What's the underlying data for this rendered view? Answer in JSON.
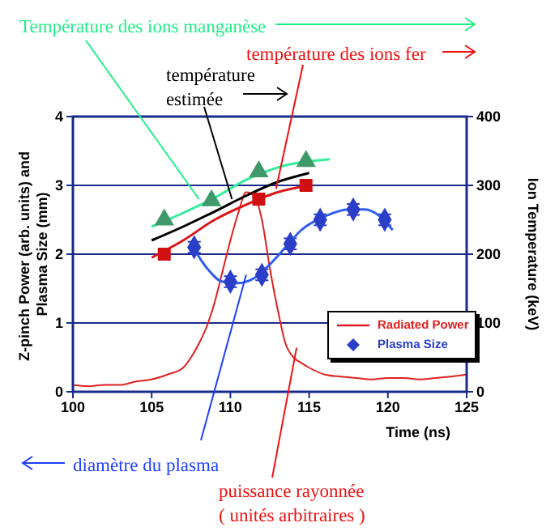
{
  "chart_data": {
    "type": "line",
    "xlabel": "Time (ns)",
    "ylabel": "Z-pinch Power (arb. units) and Plasma Size (mm)",
    "y2label": "Ion Temperature (keV)",
    "xlim": [
      100,
      125
    ],
    "xticks": [
      100,
      105,
      110,
      115,
      120,
      125
    ],
    "ylim": [
      0,
      4
    ],
    "yticks": [
      0,
      1,
      2,
      3,
      4
    ],
    "y2lim": [
      0,
      400
    ],
    "y2ticks": [
      0,
      100,
      200,
      300,
      400
    ],
    "grid": "y",
    "legend": "bottom right",
    "series": [
      {
        "name": "Radiated Power",
        "color": "#e02020",
        "x": [
          100,
          101,
          102,
          103,
          104,
          105,
          106,
          107,
          107.5,
          108,
          108.5,
          109,
          109.5,
          110,
          110.5,
          111,
          111.5,
          112,
          112.5,
          113,
          113.5,
          114,
          114.5,
          115,
          116,
          117,
          118,
          119,
          120,
          121,
          122,
          123,
          124,
          125
        ],
        "values": [
          0.1,
          0.08,
          0.1,
          0.1,
          0.15,
          0.18,
          0.25,
          0.35,
          0.5,
          0.7,
          0.95,
          1.3,
          1.75,
          2.2,
          2.6,
          2.9,
          2.85,
          2.5,
          1.8,
          1.2,
          0.7,
          0.5,
          0.42,
          0.35,
          0.25,
          0.22,
          0.2,
          0.18,
          0.2,
          0.2,
          0.18,
          0.2,
          0.22,
          0.25
        ]
      },
      {
        "name": "Plasma Size",
        "type": "scatter",
        "marker": "diamond",
        "color": "#2a3ec8",
        "x": [
          107.7,
          110,
          112,
          113.8,
          115.7,
          117.8,
          119.8
        ],
        "values": [
          2.1,
          1.6,
          1.7,
          2.15,
          2.5,
          2.65,
          2.5
        ],
        "errors": [
          0.08,
          0.08,
          0.08,
          0.08,
          0.08,
          0.08,
          0.08
        ]
      },
      {
        "color": "#2f5cf0",
        "x": [
          107.5,
          108.5,
          109.5,
          110.5,
          111.5,
          112.5,
          113.5,
          114.5,
          116,
          117.5,
          118.5,
          119.5,
          120.3
        ],
        "values": [
          2.15,
          1.8,
          1.6,
          1.58,
          1.65,
          1.85,
          2.1,
          2.35,
          2.55,
          2.65,
          2.65,
          2.55,
          2.35
        ]
      },
      {
        "type": "scatter",
        "marker": "square",
        "axis": "y2",
        "color": "#d01010",
        "x": [
          105.8,
          111.8,
          114.8
        ],
        "values": [
          200,
          280,
          300
        ]
      },
      {
        "axis": "y2",
        "color": "#d81818",
        "x": [
          105,
          107,
          109,
          111,
          113,
          115
        ],
        "values": [
          195,
          220,
          250,
          272,
          290,
          300
        ]
      },
      {
        "type": "scatter",
        "marker": "triangle",
        "axis": "y2",
        "color": "#3e9a6a",
        "x": [
          105.8,
          108.8,
          111.8,
          114.8
        ],
        "values": [
          250,
          278,
          320,
          335
        ]
      },
      {
        "axis": "y2",
        "color": "#33ee99",
        "x": [
          105,
          107,
          109,
          111,
          113,
          116.3
        ],
        "values": [
          240,
          260,
          282,
          308,
          326,
          338
        ]
      },
      {
        "axis": "y2",
        "color": "#000000",
        "x": [
          105,
          107,
          109,
          111,
          113,
          115
        ],
        "values": [
          220,
          240,
          262,
          285,
          305,
          318
        ]
      }
    ],
    "annotations": [
      {
        "text": "Température des ions manganèse",
        "x": 108,
        "y": 2.8
      },
      {
        "text": "température des ions fer",
        "x": 112.9,
        "y": 2.95
      },
      {
        "text": "température\nestimée",
        "x": 110.1,
        "y": 2.8
      },
      {
        "text": "diamètre du plasma",
        "x": 111,
        "y": 1.7
      },
      {
        "text": "puissance rayonnée\n( unités arbitraires )",
        "x": 114.2,
        "y": 0.64
      }
    ]
  }
}
